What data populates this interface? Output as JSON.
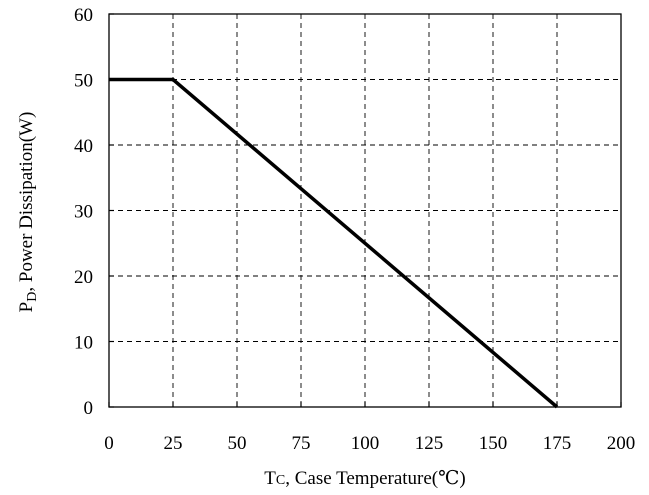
{
  "chart_data": {
    "type": "line",
    "xlabel": {
      "main": "T",
      "sub": "C",
      "rest": ", Case Temperature(℃)"
    },
    "ylabel": {
      "main": "P",
      "sub": "D",
      "rest": ", Power Dissipation(W)"
    },
    "xlim": [
      0,
      200
    ],
    "ylim": [
      0,
      60
    ],
    "xticks": [
      0,
      25,
      50,
      75,
      100,
      125,
      150,
      175,
      200
    ],
    "yticks": [
      0,
      10,
      20,
      30,
      40,
      50,
      60
    ],
    "grid": true,
    "grid_style": "dashed",
    "series": [
      {
        "color": "#000000",
        "x": [
          0,
          25,
          175
        ],
        "y": [
          50,
          50,
          0
        ]
      }
    ]
  }
}
